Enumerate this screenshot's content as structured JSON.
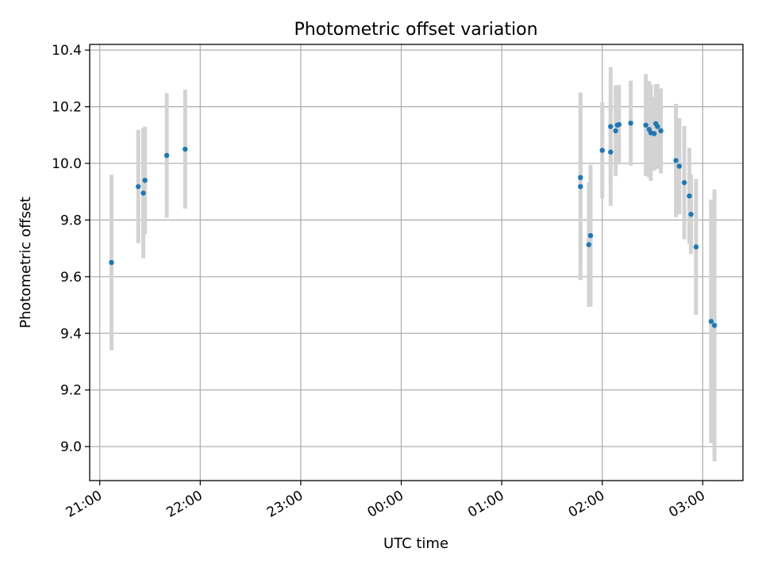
{
  "chart_data": {
    "type": "scatter",
    "title": "Photometric offset variation",
    "xlabel": "UTC time",
    "ylabel": "Photometric offset",
    "grid": true,
    "ylim": [
      8.88,
      10.42
    ],
    "xlim": [
      "20:54",
      "03:24"
    ],
    "xticks": [
      "21:00",
      "22:00",
      "23:00",
      "00:00",
      "01:00",
      "02:00",
      "03:00"
    ],
    "yticks": [
      "9.0",
      "9.2",
      "9.4",
      "9.6",
      "9.8",
      "10.0",
      "10.2",
      "10.4"
    ],
    "colors": {
      "point": "#1f77b4",
      "errorbar": "#d3d3d3"
    },
    "points": [
      {
        "x": "21:07",
        "y": 9.65,
        "err": 0.31
      },
      {
        "x": "21:23",
        "y": 9.918,
        "err": 0.2
      },
      {
        "x": "21:26",
        "y": 9.895,
        "err": 0.23
      },
      {
        "x": "21:27",
        "y": 9.94,
        "err": 0.19
      },
      {
        "x": "21:40",
        "y": 10.028,
        "err": 0.22
      },
      {
        "x": "21:51",
        "y": 10.05,
        "err": 0.21
      },
      {
        "x": "01:47",
        "y": 9.918,
        "err": 0.33
      },
      {
        "x": "01:47",
        "y": 9.95,
        "err": 0.3
      },
      {
        "x": "01:52",
        "y": 9.713,
        "err": 0.22
      },
      {
        "x": "01:53",
        "y": 9.745,
        "err": 0.25
      },
      {
        "x": "02:00",
        "y": 10.046,
        "err": 0.17
      },
      {
        "x": "02:05",
        "y": 10.04,
        "err": 0.19
      },
      {
        "x": "02:05",
        "y": 10.13,
        "err": 0.21
      },
      {
        "x": "02:08",
        "y": 10.115,
        "err": 0.16
      },
      {
        "x": "02:09",
        "y": 10.135,
        "err": 0.14
      },
      {
        "x": "02:10",
        "y": 10.137,
        "err": 0.14
      },
      {
        "x": "02:17",
        "y": 10.142,
        "err": 0.15
      },
      {
        "x": "02:26",
        "y": 10.135,
        "err": 0.18
      },
      {
        "x": "02:28",
        "y": 10.12,
        "err": 0.17
      },
      {
        "x": "02:29",
        "y": 10.108,
        "err": 0.17
      },
      {
        "x": "02:31",
        "y": 10.105,
        "err": 0.13
      },
      {
        "x": "02:32",
        "y": 10.14,
        "err": 0.14
      },
      {
        "x": "02:33",
        "y": 10.13,
        "err": 0.15
      },
      {
        "x": "02:35",
        "y": 10.115,
        "err": 0.15
      },
      {
        "x": "02:44",
        "y": 10.01,
        "err": 0.2
      },
      {
        "x": "02:46",
        "y": 9.99,
        "err": 0.17
      },
      {
        "x": "02:49",
        "y": 9.932,
        "err": 0.2
      },
      {
        "x": "02:52",
        "y": 9.885,
        "err": 0.17
      },
      {
        "x": "02:53",
        "y": 9.82,
        "err": 0.14
      },
      {
        "x": "02:56",
        "y": 9.705,
        "err": 0.24
      },
      {
        "x": "03:05",
        "y": 9.442,
        "err": 0.43
      },
      {
        "x": "03:07",
        "y": 9.428,
        "err": 0.48
      }
    ]
  }
}
